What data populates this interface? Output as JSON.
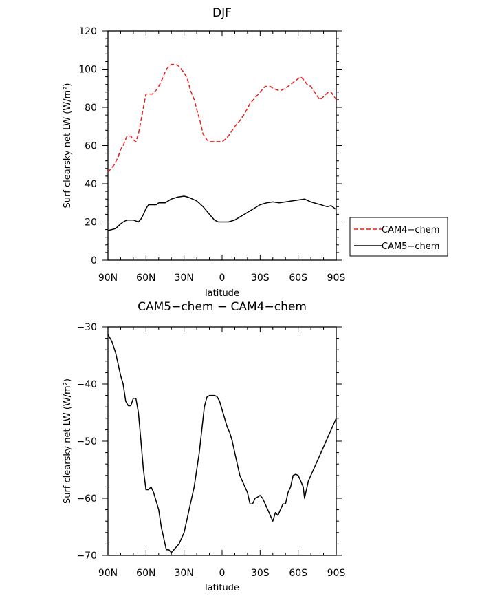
{
  "chart_data": [
    {
      "type": "line",
      "title": "DJF",
      "xlabel": "latitude",
      "ylabel": "Surf clearsky net LW (W/m²)",
      "xlim": [
        -90,
        90
      ],
      "ylim": [
        0,
        120
      ],
      "xticks": [
        -90,
        -60,
        -30,
        0,
        30,
        60,
        90
      ],
      "xtick_labels": [
        "90N",
        "60N",
        "30N",
        "0",
        "30S",
        "60S",
        "90S"
      ],
      "yticks": [
        0,
        20,
        40,
        60,
        80,
        100,
        120
      ],
      "ytick_labels": [
        "0",
        "20",
        "40",
        "60",
        "80",
        "100",
        "120"
      ],
      "legend": {
        "position": "right",
        "entries": [
          {
            "label": "CAM4−chem",
            "color": "#e8201c",
            "dash": "dashed"
          },
          {
            "label": "CAM5−chem",
            "color": "#000000",
            "dash": "solid"
          }
        ]
      },
      "series": [
        {
          "name": "CAM4−chem",
          "color": "#e8201c",
          "dash": "dashed",
          "x": [
            -90,
            -85,
            -82,
            -80,
            -78,
            -75,
            -72,
            -70,
            -68,
            -66,
            -64,
            -62,
            -60,
            -58,
            -55,
            -52,
            -50,
            -47,
            -44,
            -40,
            -37,
            -35,
            -32,
            -29,
            -27,
            -25,
            -22,
            -20,
            -17,
            -15,
            -12,
            -10,
            -8,
            -6,
            -4,
            -2,
            0,
            2,
            5,
            8,
            10,
            14,
            18,
            22,
            26,
            30,
            34,
            38,
            40,
            44,
            47,
            50,
            54,
            58,
            62,
            65,
            67,
            70,
            73,
            75,
            77,
            79,
            82,
            84,
            86,
            88,
            90
          ],
          "y": [
            46,
            50,
            54,
            58,
            60,
            65,
            65,
            63,
            62,
            66,
            73,
            80,
            87,
            87,
            87,
            89,
            91,
            95,
            100,
            102.5,
            102.5,
            102,
            100,
            97,
            94,
            89,
            84,
            79,
            72,
            66,
            63,
            62,
            62,
            62,
            62,
            62,
            62,
            63,
            65,
            68,
            70,
            73,
            77,
            82,
            85,
            88,
            91,
            91,
            90,
            89,
            89,
            90,
            92,
            94,
            96,
            94,
            92,
            91,
            88,
            86,
            84,
            85,
            87,
            88,
            88,
            86,
            84
          ]
        },
        {
          "name": "CAM5−chem",
          "color": "#000000",
          "dash": "solid",
          "x": [
            -90,
            -84,
            -80,
            -78,
            -75,
            -72,
            -70,
            -68,
            -66,
            -64,
            -62,
            -60,
            -58,
            -55,
            -52,
            -50,
            -45,
            -40,
            -35,
            -30,
            -27,
            -25,
            -20,
            -15,
            -10,
            -6,
            -3,
            0,
            5,
            10,
            15,
            20,
            25,
            30,
            35,
            40,
            45,
            50,
            55,
            60,
            65,
            70,
            75,
            78,
            80,
            83,
            86,
            88,
            90
          ],
          "y": [
            15.5,
            16.5,
            19,
            20,
            21,
            21,
            21,
            20.5,
            20,
            21.5,
            24,
            27,
            29,
            29,
            29,
            30,
            30,
            32,
            33,
            33.5,
            33,
            32.5,
            31,
            28,
            24,
            21,
            20,
            20,
            20,
            21,
            23,
            25,
            27,
            29,
            30,
            30.5,
            30,
            30.5,
            31,
            31.5,
            32,
            30.5,
            29.5,
            29,
            28.5,
            28,
            28.5,
            27.5,
            26.5
          ]
        }
      ]
    },
    {
      "type": "line",
      "title": "CAM5−chem − CAM4−chem",
      "xlabel": "latitude",
      "ylabel": "Surf clearsky net LW (W/m²)",
      "xlim": [
        -90,
        90
      ],
      "ylim": [
        -70,
        -30
      ],
      "xticks": [
        -90,
        -60,
        -30,
        0,
        30,
        60,
        90
      ],
      "xtick_labels": [
        "90N",
        "60N",
        "30N",
        "0",
        "30S",
        "60S",
        "90S"
      ],
      "yticks": [
        -70,
        -60,
        -50,
        -40,
        -30
      ],
      "ytick_labels": [
        "−70",
        "−60",
        "−50",
        "−40",
        "−30"
      ],
      "series": [
        {
          "name": "CAM5−chem − CAM4−chem",
          "color": "#000000",
          "dash": "solid",
          "x": [
            -90,
            -87,
            -84,
            -82,
            -80,
            -78,
            -76,
            -74,
            -72,
            -70,
            -68,
            -66,
            -64,
            -62,
            -60,
            -58,
            -56,
            -54,
            -52,
            -50,
            -48,
            -46,
            -44,
            -42,
            -40,
            -38,
            -36,
            -34,
            -32,
            -30,
            -28,
            -26,
            -24,
            -22,
            -20,
            -18,
            -16,
            -14,
            -12,
            -10,
            -8,
            -6,
            -4,
            -2,
            0,
            2,
            4,
            6,
            8,
            10,
            12,
            14,
            16,
            18,
            20,
            22,
            24,
            26,
            28,
            30,
            32,
            34,
            36,
            38,
            40,
            42,
            44,
            46,
            48,
            50,
            52,
            54,
            56,
            58,
            60,
            62,
            64,
            65,
            66,
            67,
            68,
            70,
            72,
            74,
            76,
            78,
            80,
            82,
            84,
            86,
            88,
            90
          ],
          "y": [
            -31.3,
            -32.5,
            -34.5,
            -36.5,
            -38.5,
            -40,
            -43,
            -43.8,
            -43.8,
            -42.5,
            -42.5,
            -45,
            -50,
            -55,
            -58.5,
            -58.5,
            -58,
            -59,
            -60.5,
            -62,
            -65,
            -67,
            -69,
            -69,
            -69.5,
            -69,
            -68.5,
            -68,
            -67,
            -66,
            -64,
            -62,
            -60,
            -58,
            -55,
            -52,
            -48,
            -44,
            -42.3,
            -42,
            -42,
            -42,
            -42.2,
            -43,
            -44.5,
            -46,
            -47.5,
            -48.5,
            -50,
            -52,
            -54,
            -56,
            -57,
            -58,
            -59,
            -61,
            -61,
            -60,
            -59.8,
            -59.5,
            -60,
            -61,
            -62,
            -63,
            -64,
            -62.5,
            -63,
            -62,
            -61,
            -61,
            -59,
            -58,
            -56,
            -55.8,
            -56,
            -57,
            -58,
            -60,
            -59,
            -58,
            -57,
            -56,
            -55,
            -54,
            -53,
            -52,
            -51,
            -50,
            -49,
            -48,
            -47,
            -46
          ]
        }
      ]
    }
  ]
}
